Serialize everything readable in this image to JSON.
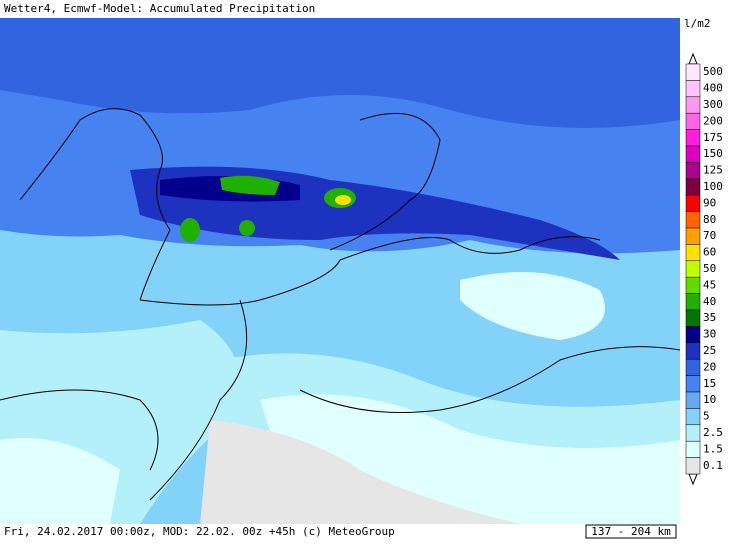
{
  "header": {
    "title": "Wetter4, Ecmwf-Model: Accumulated Precipitation"
  },
  "legend": {
    "unit": "l/m2",
    "items": [
      {
        "label": "500",
        "color": "#ffe6ff"
      },
      {
        "label": "400",
        "color": "#ffc4ff"
      },
      {
        "label": "300",
        "color": "#ff96f2"
      },
      {
        "label": "200",
        "color": "#ff64e4"
      },
      {
        "label": "175",
        "color": "#ff1ee0"
      },
      {
        "label": "150",
        "color": "#dc00c0"
      },
      {
        "label": "125",
        "color": "#ac0090"
      },
      {
        "label": "100",
        "color": "#7c0040"
      },
      {
        "label": "90",
        "color": "#ff0000"
      },
      {
        "label": "80",
        "color": "#ff6400"
      },
      {
        "label": "70",
        "color": "#ffa000"
      },
      {
        "label": "60",
        "color": "#ffe000"
      },
      {
        "label": "50",
        "color": "#c0ff00"
      },
      {
        "label": "45",
        "color": "#60dc00"
      },
      {
        "label": "40",
        "color": "#20b000"
      },
      {
        "label": "35",
        "color": "#007800"
      },
      {
        "label": "30",
        "color": "#00008c"
      },
      {
        "label": "25",
        "color": "#1e32c0"
      },
      {
        "label": "20",
        "color": "#3264e0"
      },
      {
        "label": "15",
        "color": "#4682f0"
      },
      {
        "label": "10",
        "color": "#64aaf0"
      },
      {
        "label": "5",
        "color": "#82d2fa"
      },
      {
        "label": "2.5",
        "color": "#b4f0fa"
      },
      {
        "label": "1.5",
        "color": "#e0ffff"
      },
      {
        "label": "0.1",
        "color": "#e6e6e6"
      }
    ]
  },
  "footer": {
    "info": "Fri, 24.02.2017 00:00z, MOD: 22.02. 00z +45h (c) MeteoGroup",
    "scale": "137 - 204 km"
  }
}
